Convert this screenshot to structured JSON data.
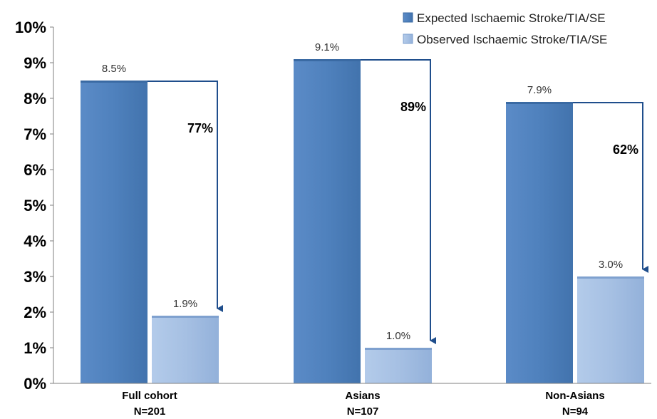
{
  "chart_data": {
    "type": "bar",
    "title": "",
    "xlabel": "",
    "ylabel": "",
    "ylim": [
      0,
      10
    ],
    "yticks": [
      "0%",
      "1%",
      "2%",
      "3%",
      "4%",
      "5%",
      "6%",
      "7%",
      "8%",
      "9%",
      "10%"
    ],
    "grid": false,
    "legend_position": "top-right",
    "categories": [
      {
        "line1": "Full cohort",
        "line2": "N=201"
      },
      {
        "line1": "Asians",
        "line2": "N=107"
      },
      {
        "line1": "Non-Asians",
        "line2": "N=94"
      }
    ],
    "series": [
      {
        "name": "Expected Ischaemic Stroke/TIA/SE",
        "values": [
          8.5,
          9.1,
          7.9
        ],
        "labels": [
          "8.5%",
          "9.1%",
          "7.9%"
        ],
        "color": "#4f81bd"
      },
      {
        "name": "Observed Ischaemic Stroke/TIA/SE",
        "values": [
          1.9,
          1.0,
          3.0
        ],
        "labels": [
          "1.9%",
          "1.0%",
          "3.0%"
        ],
        "color": "#a6c0e3"
      }
    ],
    "annotations": [
      "77%",
      "89%",
      "62%"
    ],
    "arrow_color": "#1f4e8c"
  }
}
